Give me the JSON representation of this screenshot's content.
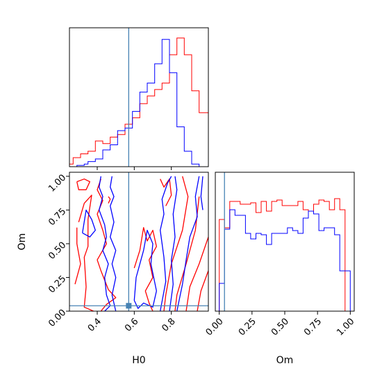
{
  "chart_data": {
    "type": "corner",
    "parameters": [
      "H0",
      "Om"
    ],
    "colors": {
      "series_a": "#ff0000",
      "series_b": "#0000ff",
      "truth": "#4682b4"
    },
    "truths": {
      "H0": 0.57,
      "Om": 0.04
    },
    "panels": [
      {
        "id": "hist-H0",
        "type": "histogram",
        "xlim": [
          0.25,
          1.0
        ],
        "xticks": [
          0.4,
          0.6,
          0.8
        ],
        "bin_edges": [
          0.25,
          0.27,
          0.29,
          0.31,
          0.33,
          0.35,
          0.37,
          0.39,
          0.41,
          0.43,
          0.45,
          0.47,
          0.49,
          0.51,
          0.53,
          0.55,
          0.57,
          0.59,
          0.61,
          0.63,
          0.65,
          0.67,
          0.69,
          0.71,
          0.73,
          0.75,
          0.77,
          0.79,
          0.81,
          0.83,
          0.85,
          0.87,
          0.89,
          0.91,
          0.93,
          0.95,
          0.97,
          0.99,
          1.0
        ],
        "series": [
          {
            "color": "#ff0000",
            "values": [
              0.02,
              0.07,
              0.07,
              0.1,
              0.1,
              0.12,
              0.12,
              0.2,
              0.2,
              0.18,
              0.18,
              0.23,
              0.23,
              0.25,
              0.25,
              0.33,
              0.33,
              0.38,
              0.38,
              0.49,
              0.49,
              0.55,
              0.55,
              0.6,
              0.6,
              0.65,
              0.65,
              0.87,
              0.87,
              1.0,
              1.0,
              0.87,
              0.87,
              0.59,
              0.59,
              0.42,
              0.42,
              0.42
            ]
          },
          {
            "color": "#0000ff",
            "values": [
              0.0,
              0.0,
              0.01,
              0.01,
              0.02,
              0.04,
              0.04,
              0.06,
              0.06,
              0.13,
              0.13,
              0.17,
              0.17,
              0.28,
              0.28,
              0.3,
              0.3,
              0.43,
              0.43,
              0.58,
              0.58,
              0.65,
              0.65,
              0.8,
              0.8,
              0.99,
              0.99,
              0.73,
              0.73,
              0.31,
              0.31,
              0.12,
              0.12,
              0.02,
              0.02,
              0.0,
              0.0,
              0.0
            ]
          }
        ]
      },
      {
        "id": "hist-Om",
        "type": "histogram",
        "xlim": [
          0.0,
          1.0
        ],
        "xlabel": "Om",
        "xticks": [
          0.0,
          0.25,
          0.5,
          0.75,
          1.0
        ],
        "xticklabels": [
          "0.00",
          "0.25",
          "0.50",
          "0.75",
          "1.00"
        ],
        "bin_edges": [
          0.0,
          0.04,
          0.08,
          0.12,
          0.16,
          0.2,
          0.24,
          0.28,
          0.32,
          0.36,
          0.4,
          0.44,
          0.48,
          0.52,
          0.56,
          0.6,
          0.64,
          0.68,
          0.72,
          0.76,
          0.8,
          0.84,
          0.88,
          0.92,
          0.96,
          1.0
        ],
        "series": [
          {
            "color": "#ff0000",
            "values": [
              0.66,
              0.6,
              0.79,
              0.79,
              0.77,
              0.77,
              0.78,
              0.71,
              0.79,
              0.72,
              0.79,
              0.8,
              0.76,
              0.76,
              0.76,
              0.79,
              0.73,
              0.72,
              0.77,
              0.8,
              0.79,
              0.73,
              0.81,
              0.73,
              0.0
            ]
          },
          {
            "color": "#0000ff",
            "values": [
              0.2,
              0.59,
              0.73,
              0.69,
              0.69,
              0.56,
              0.52,
              0.56,
              0.55,
              0.48,
              0.56,
              0.56,
              0.56,
              0.6,
              0.58,
              0.56,
              0.67,
              0.72,
              0.7,
              0.58,
              0.6,
              0.6,
              0.55,
              0.29,
              0.29
            ]
          }
        ]
      },
      {
        "id": "contour-H0-Om",
        "type": "contour",
        "xlim": [
          0.25,
          1.0
        ],
        "ylim": [
          0.0,
          1.03
        ],
        "xlabel": "H0",
        "ylabel": "Om",
        "xticks": [
          0.4,
          0.6,
          0.8
        ],
        "xticklabels": [
          "0.4",
          "0.6",
          "0.8"
        ],
        "yticks": [
          0.0,
          0.25,
          0.5,
          0.75,
          1.0
        ],
        "yticklabels": [
          "0.00",
          "0.25",
          "0.50",
          "0.75",
          "1.00"
        ],
        "series": [
          {
            "color": "#ff0000",
            "paths": [
              [
                [
                  0.29,
                  0.96
                ],
                [
                  0.33,
                  0.98
                ],
                [
                  0.36,
                  0.96
                ],
                [
                  0.34,
                  0.9
                ],
                [
                  0.3,
                  0.9
                ],
                [
                  0.29,
                  0.96
                ]
              ],
              [
                [
                  0.3,
                  0.66
                ],
                [
                  0.33,
                  0.8
                ],
                [
                  0.37,
                  0.86
                ],
                [
                  0.35,
                  0.68
                ],
                [
                  0.35,
                  0.48
                ],
                [
                  0.33,
                  0.4
                ],
                [
                  0.34,
                  0.18
                ],
                [
                  0.33,
                  0.03
                ],
                [
                  0.38,
                  0.0
                ]
              ],
              [
                [
                  0.28,
                  0.2
                ],
                [
                  0.31,
                  0.35
                ],
                [
                  0.29,
                  0.5
                ],
                [
                  0.29,
                  0.62
                ]
              ],
              [
                [
                  0.42,
                  0.98
                ],
                [
                  0.4,
                  0.9
                ],
                [
                  0.43,
                  0.82
                ],
                [
                  0.4,
                  0.72
                ],
                [
                  0.43,
                  0.6
                ],
                [
                  0.45,
                  0.5
                ],
                [
                  0.4,
                  0.38
                ],
                [
                  0.42,
                  0.3
                ],
                [
                  0.46,
                  0.16
                ],
                [
                  0.5,
                  0.1
                ],
                [
                  0.45,
                  0.05
                ],
                [
                  0.42,
                  0.0
                ]
              ],
              [
                [
                  0.46,
                  0.85
                ],
                [
                  0.47,
                  0.83
                ],
                [
                  0.46,
                  0.8
                ]
              ],
              [
                [
                  0.6,
                  0.32
                ],
                [
                  0.63,
                  0.45
                ],
                [
                  0.65,
                  0.62
                ],
                [
                  0.67,
                  0.52
                ],
                [
                  0.7,
                  0.6
                ],
                [
                  0.72,
                  0.48
                ],
                [
                  0.68,
                  0.38
                ],
                [
                  0.7,
                  0.25
                ],
                [
                  0.66,
                  0.15
                ],
                [
                  0.68,
                  0.06
                ],
                [
                  0.7,
                  0.0
                ]
              ],
              [
                [
                  0.74,
                  0.98
                ],
                [
                  0.76,
                  0.92
                ],
                [
                  0.79,
                  0.98
                ],
                [
                  0.8,
                  0.86
                ],
                [
                  0.77,
                  0.78
                ]
              ],
              [
                [
                  0.86,
                  1.0
                ],
                [
                  0.89,
                  0.85
                ],
                [
                  0.86,
                  0.6
                ],
                [
                  0.8,
                  0.35
                ],
                [
                  0.77,
                  0.12
                ],
                [
                  0.76,
                  0.0
                ]
              ],
              [
                [
                  0.95,
                  0.85
                ],
                [
                  0.93,
                  0.6
                ],
                [
                  0.88,
                  0.35
                ],
                [
                  0.83,
                  0.12
                ],
                [
                  0.82,
                  0.0
                ]
              ],
              [
                [
                  1.0,
                  0.55
                ],
                [
                  0.95,
                  0.35
                ],
                [
                  0.9,
                  0.18
                ],
                [
                  0.88,
                  0.0
                ]
              ],
              [
                [
                  1.0,
                  0.3
                ],
                [
                  0.96,
                  0.15
                ],
                [
                  0.94,
                  0.0
                ]
              ]
            ]
          },
          {
            "color": "#0000ff",
            "paths": [
              [
                [
                  0.42,
                  1.0
                ],
                [
                  0.41,
                  0.92
                ],
                [
                  0.43,
                  0.85
                ],
                [
                  0.41,
                  0.75
                ],
                [
                  0.44,
                  0.64
                ],
                [
                  0.45,
                  0.55
                ],
                [
                  0.43,
                  0.45
                ],
                [
                  0.46,
                  0.35
                ],
                [
                  0.44,
                  0.25
                ],
                [
                  0.45,
                  0.12
                ],
                [
                  0.47,
                  0.04
                ],
                [
                  0.44,
                  0.0
                ]
              ],
              [
                [
                  0.48,
                  1.0
                ],
                [
                  0.47,
                  0.92
                ],
                [
                  0.49,
                  0.85
                ],
                [
                  0.47,
                  0.78
                ],
                [
                  0.49,
                  0.66
                ],
                [
                  0.47,
                  0.55
                ],
                [
                  0.5,
                  0.45
                ],
                [
                  0.48,
                  0.35
                ],
                [
                  0.5,
                  0.25
                ],
                [
                  0.48,
                  0.12
                ],
                [
                  0.5,
                  0.0
                ]
              ],
              [
                [
                  0.32,
                  0.58
                ],
                [
                  0.34,
                  0.75
                ],
                [
                  0.37,
                  0.68
                ],
                [
                  0.39,
                  0.6
                ],
                [
                  0.36,
                  0.55
                ],
                [
                  0.32,
                  0.58
                ]
              ],
              [
                [
                  0.6,
                  0.08
                ],
                [
                  0.61,
                  0.25
                ],
                [
                  0.65,
                  0.45
                ],
                [
                  0.67,
                  0.6
                ],
                [
                  0.7,
                  0.5
                ],
                [
                  0.69,
                  0.35
                ],
                [
                  0.72,
                  0.15
                ],
                [
                  0.7,
                  0.03
                ],
                [
                  0.65,
                  0.06
                ],
                [
                  0.62,
                  0.02
                ],
                [
                  0.6,
                  0.08
                ]
              ],
              [
                [
                  0.74,
                  0.0
                ],
                [
                  0.77,
                  0.22
                ],
                [
                  0.76,
                  0.4
                ],
                [
                  0.74,
                  0.6
                ],
                [
                  0.76,
                  0.72
                ],
                [
                  0.75,
                  0.83
                ],
                [
                  0.78,
                  0.95
                ],
                [
                  0.8,
                  1.0
                ]
              ],
              [
                [
                  0.79,
                  0.0
                ],
                [
                  0.81,
                  0.2
                ],
                [
                  0.8,
                  0.38
                ],
                [
                  0.82,
                  0.55
                ],
                [
                  0.81,
                  0.72
                ],
                [
                  0.83,
                  0.9
                ],
                [
                  0.82,
                  1.0
                ]
              ],
              [
                [
                  0.95,
                  1.0
                ],
                [
                  0.93,
                  0.85
                ],
                [
                  0.94,
                  0.7
                ],
                [
                  0.9,
                  0.55
                ],
                [
                  0.88,
                  0.38
                ],
                [
                  0.86,
                  0.2
                ],
                [
                  0.83,
                  0.0
                ]
              ],
              [
                [
                  0.97,
                  1.0
                ],
                [
                  0.96,
                  0.85
                ],
                [
                  0.97,
                  0.75
                ]
              ]
            ]
          }
        ]
      }
    ]
  }
}
